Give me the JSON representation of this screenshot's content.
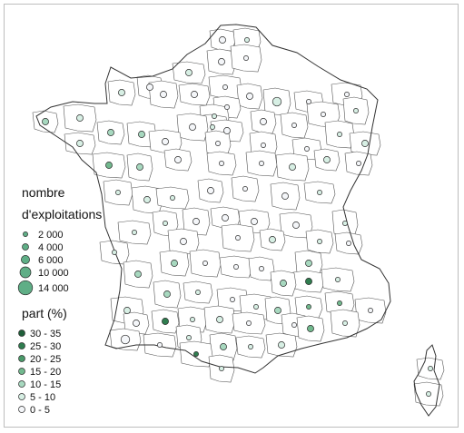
{
  "legend_size": {
    "title_line1": "nombre",
    "title_line2": "d'exploitations",
    "entries": [
      {
        "value": 2000,
        "label": "2 000"
      },
      {
        "value": 4000,
        "label": "4 000"
      },
      {
        "value": 6000,
        "label": "6 000"
      },
      {
        "value": 10000,
        "label": "10 000"
      },
      {
        "value": 14000,
        "label": "14 000"
      }
    ]
  },
  "legend_color": {
    "title": "part (%)",
    "classes": [
      {
        "label": "30  -  35",
        "color": "#1f5f3a"
      },
      {
        "label": "25  -  30",
        "color": "#2f7d4f"
      },
      {
        "label": "20  -  25",
        "color": "#4a9a6a"
      },
      {
        "label": "15  -  20",
        "color": "#72b98e"
      },
      {
        "label": "10  -  15",
        "color": "#a7d8bf"
      },
      {
        "label": "5  -  10",
        "color": "#d7efe4"
      },
      {
        "label": "0  -  5",
        "color": "#f4f6f9"
      }
    ]
  }
}
